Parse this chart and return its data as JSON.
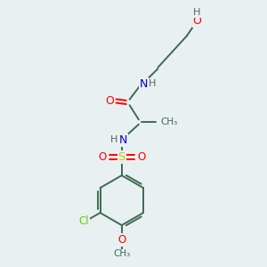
{
  "bg_color": "#e8f0f2",
  "bond_color": "#3d6b50",
  "atom_colors": {
    "O": "#ff0000",
    "N": "#0000cc",
    "S": "#cccc00",
    "Cl": "#66cc00",
    "H": "#606060",
    "C": "#3d6b50"
  },
  "figsize": [
    3.0,
    3.0
  ],
  "dpi": 100
}
